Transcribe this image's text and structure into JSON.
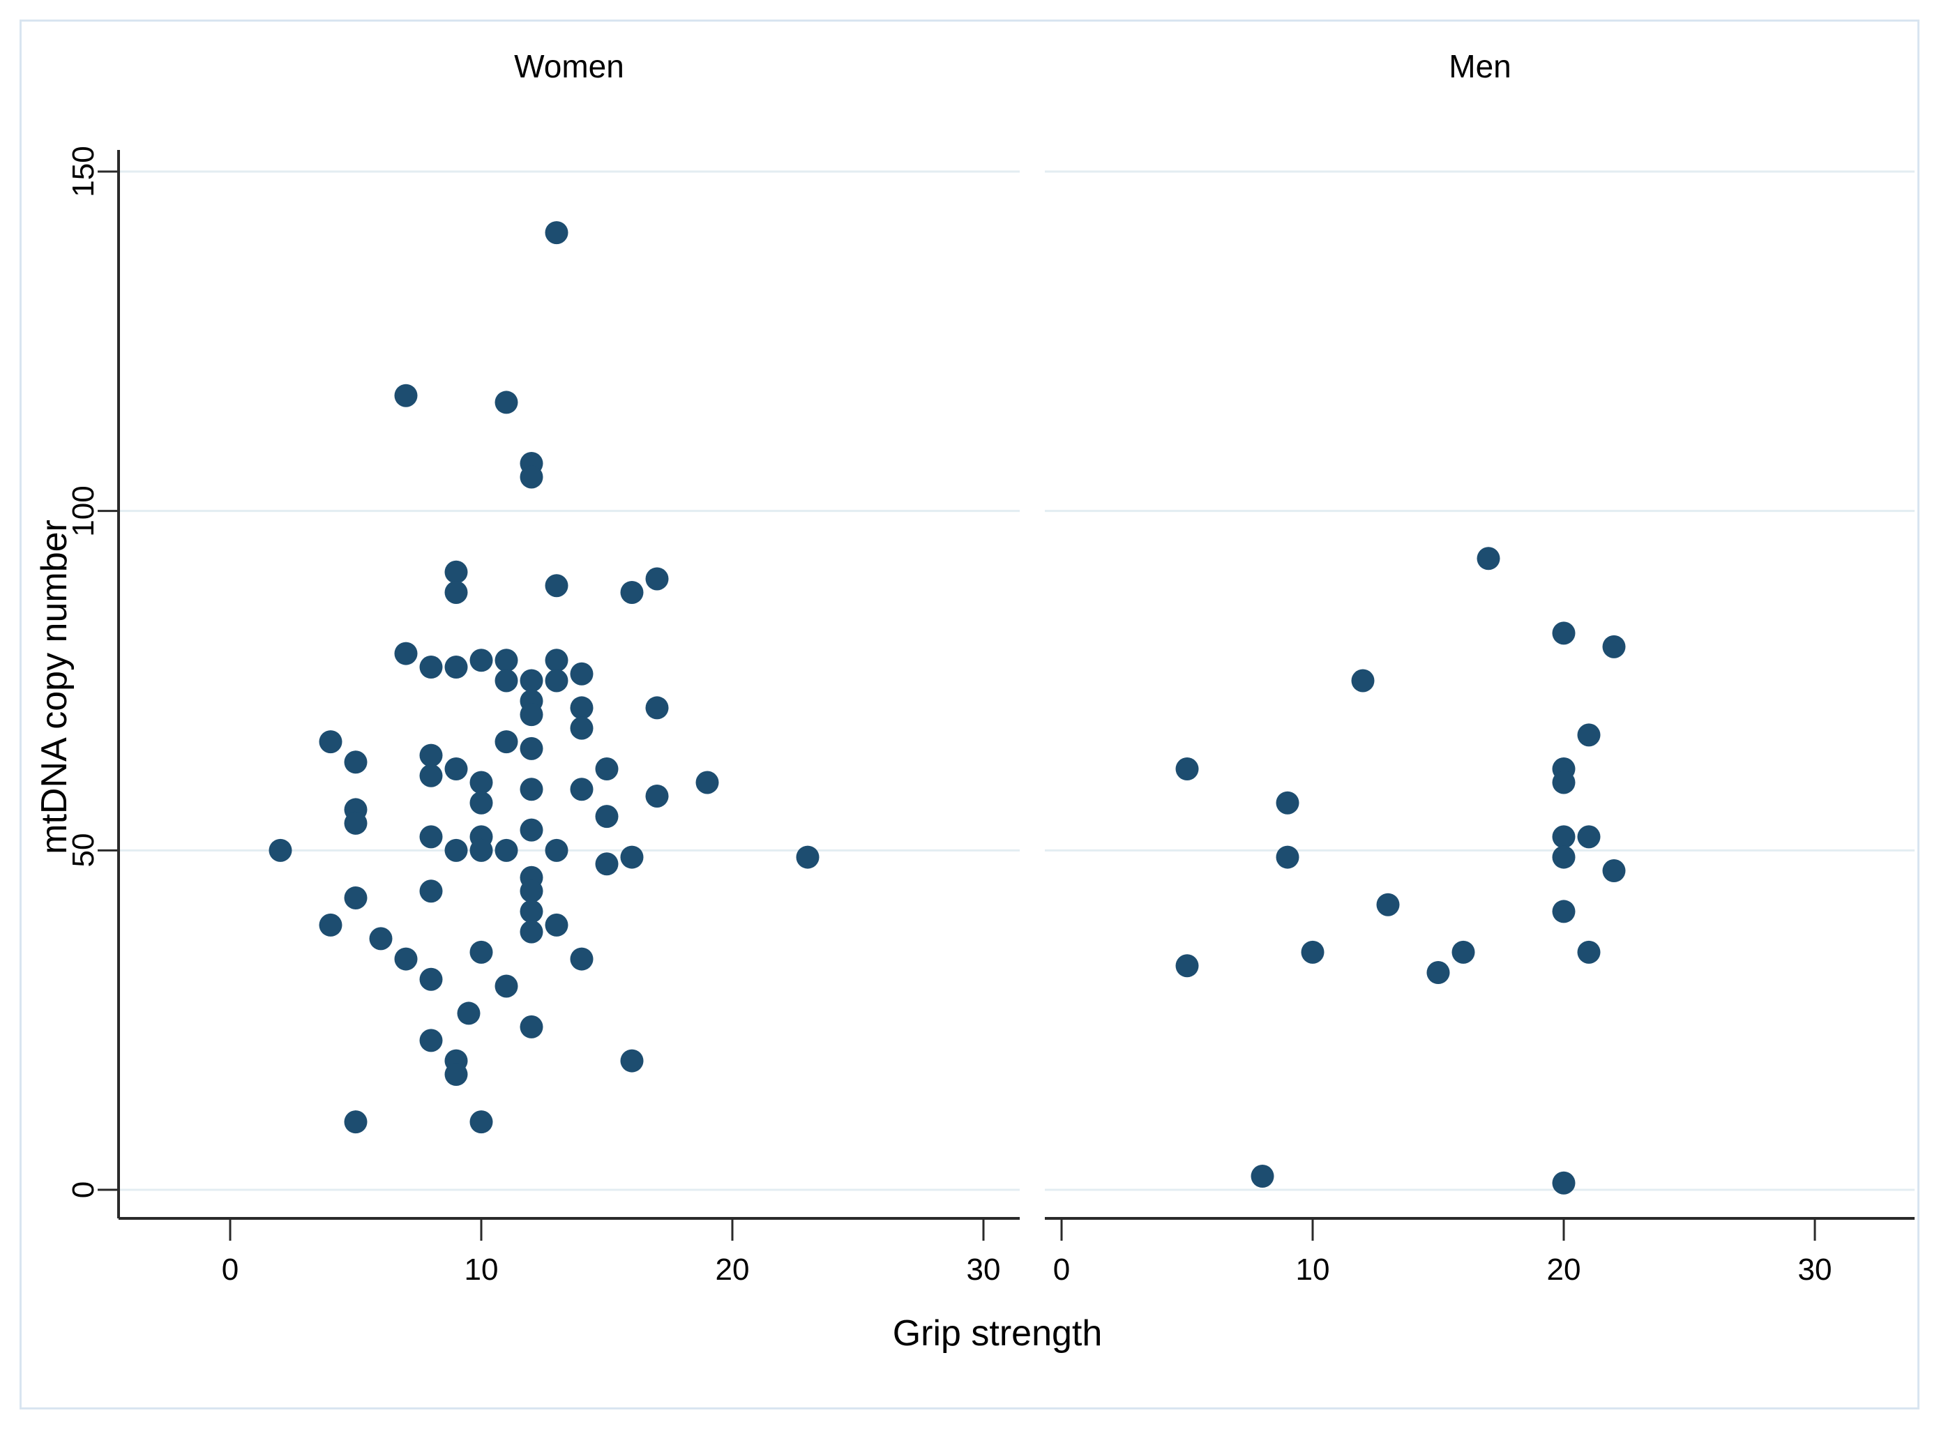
{
  "page": {
    "background_color": "#ffffff",
    "frame_color": "#d9e5f0"
  },
  "axes": {
    "x_label": "Grip strength",
    "y_label": "mtDNA copy number",
    "x_ticks": [
      "0",
      "10",
      "20",
      "30"
    ],
    "y_ticks": [
      "0",
      "50",
      "100",
      "150"
    ]
  },
  "chart_data": {
    "type": "scatter",
    "title": "",
    "xlabel": "Grip strength",
    "ylabel": "mtDNA copy number",
    "xlim": [
      0,
      30
    ],
    "ylim": [
      0,
      150
    ],
    "x_tick_values": [
      0,
      10,
      20,
      30
    ],
    "y_tick_values": [
      0,
      50,
      100,
      150
    ],
    "grid": "horizontal-only",
    "legend": "none",
    "marker_color": "#1d4d70",
    "gridline_color": "#e3edf2",
    "axis_color": "#2a2a2a",
    "panels": [
      {
        "title": "Women",
        "points": [
          [
            13,
            141
          ],
          [
            7,
            117
          ],
          [
            11,
            116
          ],
          [
            12,
            107
          ],
          [
            12,
            105
          ],
          [
            9,
            91
          ],
          [
            9,
            88
          ],
          [
            13,
            89
          ],
          [
            16,
            88
          ],
          [
            17,
            90
          ],
          [
            7,
            79
          ],
          [
            8,
            77
          ],
          [
            9,
            77
          ],
          [
            10,
            78
          ],
          [
            11,
            78
          ],
          [
            11,
            75
          ],
          [
            12,
            75
          ],
          [
            13,
            78
          ],
          [
            13,
            75
          ],
          [
            14,
            76
          ],
          [
            12,
            72
          ],
          [
            12,
            70
          ],
          [
            14,
            71
          ],
          [
            14,
            68
          ],
          [
            17,
            71
          ],
          [
            4,
            66
          ],
          [
            5,
            63
          ],
          [
            11,
            66
          ],
          [
            12,
            65
          ],
          [
            8,
            64
          ],
          [
            8,
            61
          ],
          [
            9,
            62
          ],
          [
            15,
            62
          ],
          [
            10,
            60
          ],
          [
            19,
            60
          ],
          [
            10,
            57
          ],
          [
            12,
            59
          ],
          [
            14,
            59
          ],
          [
            17,
            58
          ],
          [
            5,
            56
          ],
          [
            5,
            54
          ],
          [
            15,
            55
          ],
          [
            2,
            50
          ],
          [
            8,
            52
          ],
          [
            9,
            50
          ],
          [
            10,
            52
          ],
          [
            10,
            50
          ],
          [
            11,
            50
          ],
          [
            12,
            53
          ],
          [
            13,
            50
          ],
          [
            15,
            48
          ],
          [
            16,
            49
          ],
          [
            23,
            49
          ],
          [
            8,
            44
          ],
          [
            12,
            46
          ],
          [
            12,
            44
          ],
          [
            12,
            41
          ],
          [
            12,
            38
          ],
          [
            13,
            39
          ],
          [
            5,
            43
          ],
          [
            4,
            39
          ],
          [
            6,
            37
          ],
          [
            7,
            34
          ],
          [
            8,
            31
          ],
          [
            10,
            35
          ],
          [
            11,
            30
          ],
          [
            14,
            34
          ],
          [
            9.5,
            26
          ],
          [
            12,
            24
          ],
          [
            8,
            22
          ],
          [
            9,
            19
          ],
          [
            9,
            17
          ],
          [
            16,
            19
          ],
          [
            5,
            10
          ],
          [
            10,
            10
          ]
        ]
      },
      {
        "title": "Men",
        "points": [
          [
            17,
            93
          ],
          [
            20,
            82
          ],
          [
            22,
            80
          ],
          [
            12,
            75
          ],
          [
            21,
            67
          ],
          [
            5,
            62
          ],
          [
            20,
            62
          ],
          [
            20,
            60
          ],
          [
            9,
            57
          ],
          [
            20,
            52
          ],
          [
            21,
            52
          ],
          [
            9,
            49
          ],
          [
            20,
            49
          ],
          [
            22,
            47
          ],
          [
            13,
            42
          ],
          [
            20,
            41
          ],
          [
            10,
            35
          ],
          [
            16,
            35
          ],
          [
            21,
            35
          ],
          [
            15,
            32
          ],
          [
            5,
            33
          ],
          [
            8,
            2
          ],
          [
            20,
            1
          ]
        ]
      }
    ]
  }
}
